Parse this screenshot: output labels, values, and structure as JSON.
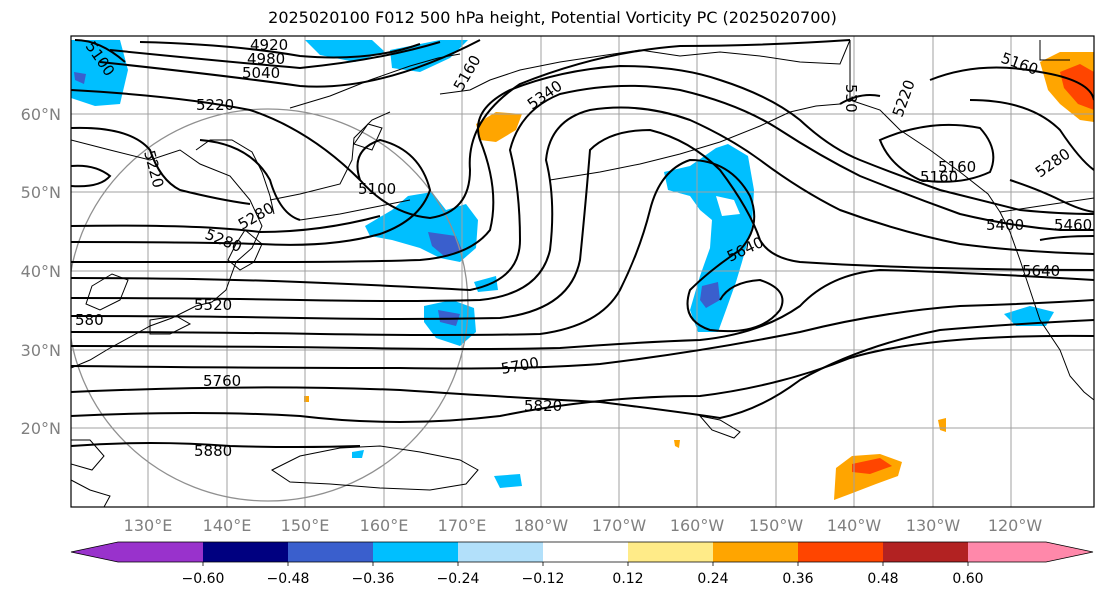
{
  "title": "2025020100 F012 500 hPa height, Potential Vorticity PC (2025020700)",
  "map": {
    "lat_labels": [
      "60°N",
      "50°N",
      "40°N",
      "30°N",
      "20°N"
    ],
    "lon_labels": [
      "130°E",
      "140°E",
      "150°E",
      "160°E",
      "170°E",
      "180°W",
      "170°W",
      "160°W",
      "150°W",
      "140°W",
      "130°W",
      "120°W"
    ],
    "contour_labels": [
      "5100",
      "4920",
      "4980",
      "5040",
      "5220",
      "5220",
      "5160",
      "5340",
      "5100",
      "5280",
      "5280",
      "5520",
      "580",
      "5760",
      "5880",
      "5700",
      "5820",
      "5640",
      "5640",
      "5400",
      "5460",
      "5160",
      "5220",
      "5280",
      "5160",
      "5160",
      "530"
    ],
    "label_color": "#808080"
  },
  "colorbar": {
    "colors": [
      "#9932cc",
      "#000080",
      "#3a5fcd",
      "#00bfff",
      "#b2e0fa",
      "#ffffff",
      "#ffeb88",
      "#ffa500",
      "#ff4500",
      "#b22222",
      "#ff88aa"
    ],
    "ticks": [
      "−0.60",
      "−0.48",
      "−0.36",
      "−0.24",
      "−0.12",
      "0.12",
      "0.24",
      "0.36",
      "0.48",
      "0.60"
    ]
  }
}
